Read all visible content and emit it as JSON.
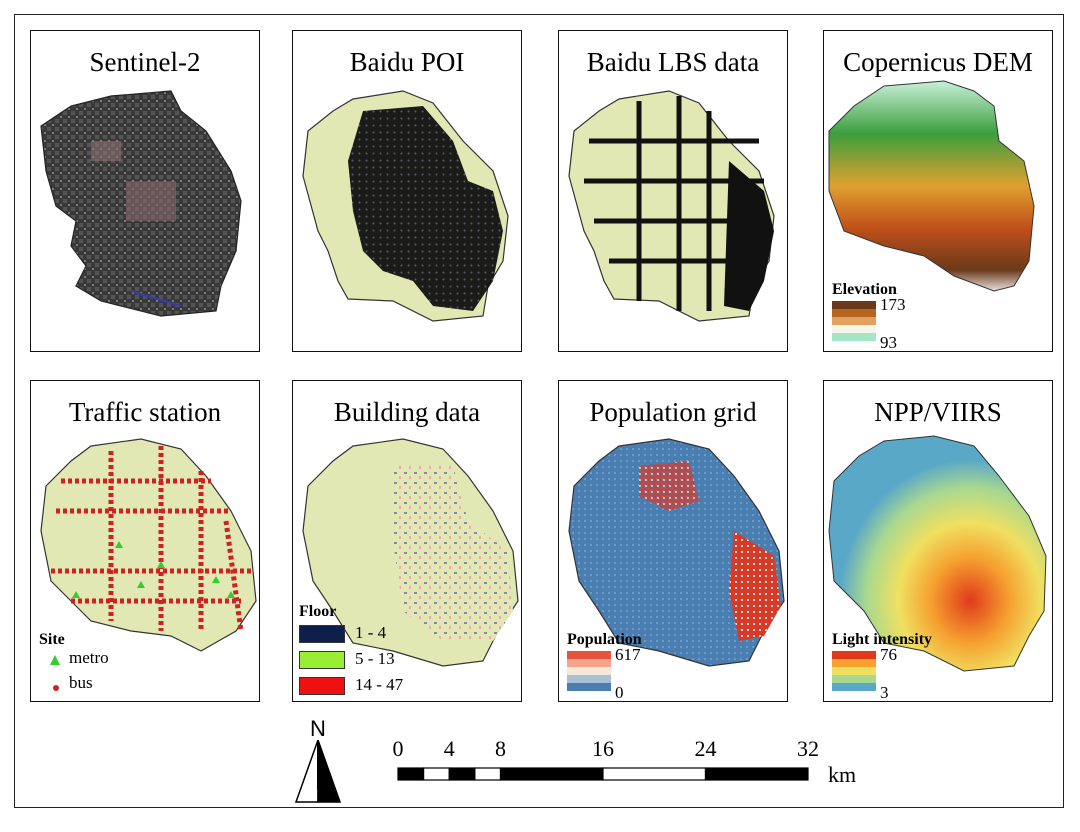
{
  "panels": [
    {
      "id": "sentinel",
      "title": "Sentinel-2"
    },
    {
      "id": "poi",
      "title": "Baidu POI"
    },
    {
      "id": "lbs",
      "title": "Baidu LBS data"
    },
    {
      "id": "dem",
      "title": "Copernicus DEM",
      "legend": {
        "title": "Elevation",
        "max": "173",
        "min": "93",
        "colors": [
          "#6b3a1a",
          "#b5651d",
          "#e0a060",
          "#f5f5e8",
          "#a6e6c8"
        ]
      }
    },
    {
      "id": "traffic",
      "title": "Traffic station",
      "legend": {
        "title": "Site",
        "items": [
          {
            "label": "metro",
            "color": "#33cc33",
            "symbol": "triangle"
          },
          {
            "label": "bus",
            "color": "#cc2222",
            "symbol": "dot"
          }
        ]
      }
    },
    {
      "id": "building",
      "title": "Building data",
      "legend": {
        "title": "Floor",
        "items": [
          {
            "label": "1 - 4",
            "color": "#0d1f4a"
          },
          {
            "label": "5 - 13",
            "color": "#99ee33"
          },
          {
            "label": "14 - 47",
            "color": "#ee1111"
          }
        ]
      }
    },
    {
      "id": "popgrid",
      "title": "Population grid",
      "legend": {
        "title": "Population",
        "max": "617",
        "min": "0",
        "colors": [
          "#e8533f",
          "#f3a48a",
          "#f6e8d8",
          "#a9bfd6",
          "#4a7db0"
        ]
      }
    },
    {
      "id": "viirs",
      "title": "NPP/VIIRS",
      "legend": {
        "title": "Light intensity",
        "max": "76",
        "min": "3",
        "colors": [
          "#e03a1a",
          "#f5a030",
          "#f0e060",
          "#a8d890",
          "#5aa8c8"
        ]
      }
    }
  ],
  "north_arrow": {
    "label": "N"
  },
  "scale_bar": {
    "ticks": [
      "0",
      "4",
      "8",
      "16",
      "24",
      "32"
    ],
    "tick_values": [
      0,
      4,
      8,
      16,
      24,
      32
    ],
    "unit": "km"
  }
}
